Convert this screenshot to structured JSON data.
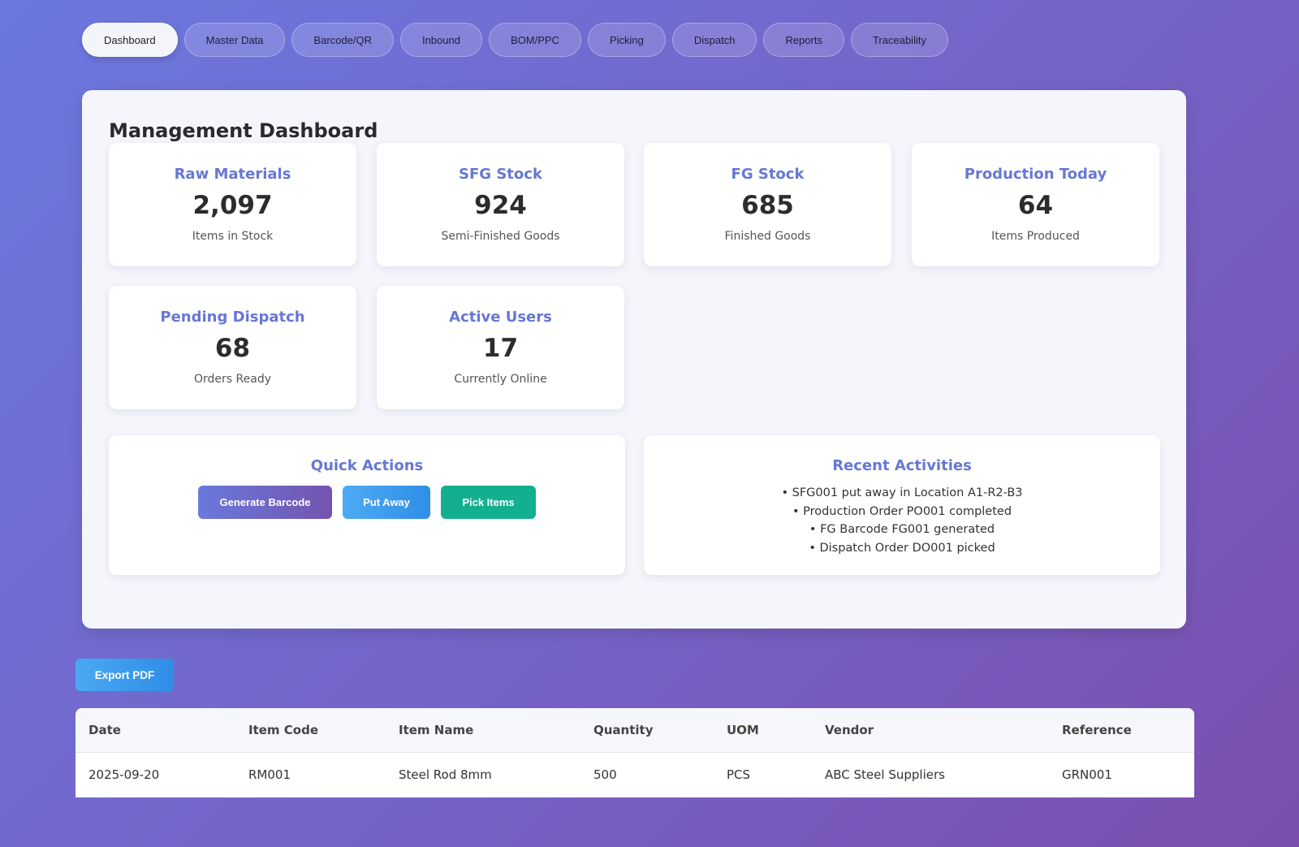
{
  "nav": {
    "tabs": [
      {
        "label": "Dashboard",
        "active": true
      },
      {
        "label": "Master Data"
      },
      {
        "label": "Barcode/QR"
      },
      {
        "label": "Inbound"
      },
      {
        "label": "BOM/PPC"
      },
      {
        "label": "Picking"
      },
      {
        "label": "Dispatch"
      },
      {
        "label": "Reports"
      },
      {
        "label": "Traceability"
      }
    ]
  },
  "dashboard": {
    "title": "Management Dashboard",
    "stats": [
      {
        "title": "Raw Materials",
        "value": "2,097",
        "sub": "Items in Stock"
      },
      {
        "title": "SFG Stock",
        "value": "924",
        "sub": "Semi-Finished Goods"
      },
      {
        "title": "FG Stock",
        "value": "685",
        "sub": "Finished Goods"
      },
      {
        "title": "Production Today",
        "value": "64",
        "sub": "Items Produced"
      },
      {
        "title": "Pending Dispatch",
        "value": "68",
        "sub": "Orders Ready"
      },
      {
        "title": "Active Users",
        "value": "17",
        "sub": "Currently Online"
      }
    ],
    "quick_actions": {
      "title": "Quick Actions",
      "generate_barcode": "Generate Barcode",
      "put_away": "Put Away",
      "pick_items": "Pick Items"
    },
    "recent_activities": {
      "title": "Recent Activities",
      "items": [
        "• SFG001 put away in Location A1-R2-B3",
        "• Production Order PO001 completed",
        "• FG Barcode FG001 generated",
        "• Dispatch Order DO001 picked"
      ]
    }
  },
  "export": {
    "label": "Export PDF"
  },
  "table": {
    "headers": [
      "Date",
      "Item Code",
      "Item Name",
      "Quantity",
      "UOM",
      "Vendor",
      "Reference"
    ],
    "rows": [
      [
        "2025-09-20",
        "RM001",
        "Steel Rod 8mm",
        "500",
        "PCS",
        "ABC Steel Suppliers",
        "GRN001"
      ]
    ]
  },
  "colors": {
    "accent": "#6677d4",
    "put_away": "#3d9cee",
    "pick_items": "#13b08f"
  }
}
